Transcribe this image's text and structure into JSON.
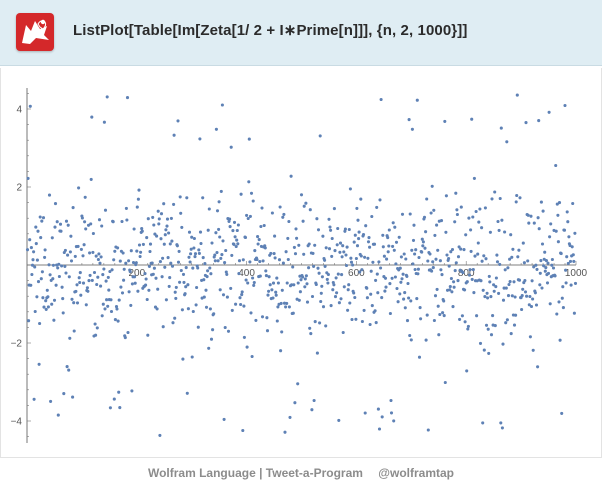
{
  "header": {
    "code": "ListPlot[Table[Im[Zeta[1/ 2  +  I∗Prime[n]]],  {n, 2, 1000}]]",
    "logo_icon": "wolfram-wolf-icon",
    "accent": "#d4282a"
  },
  "footer": {
    "brand": "Wolfram Language | Tweet-a-Program",
    "handle": "@wolframtap"
  },
  "chart_data": {
    "type": "scatter",
    "xlim": [
      0,
      1000
    ],
    "ylim": [
      -4.5,
      4.5
    ],
    "x_ticks": [
      "200",
      "400",
      "600",
      "800",
      "1000"
    ],
    "y_ticks": [
      "4",
      "2",
      "-2",
      "-4"
    ],
    "point_color": "#5e81b5",
    "n_points": 999,
    "x_start": 1,
    "x_end": 999,
    "title": "",
    "xlabel": "",
    "ylabel": "",
    "grid": false
  }
}
